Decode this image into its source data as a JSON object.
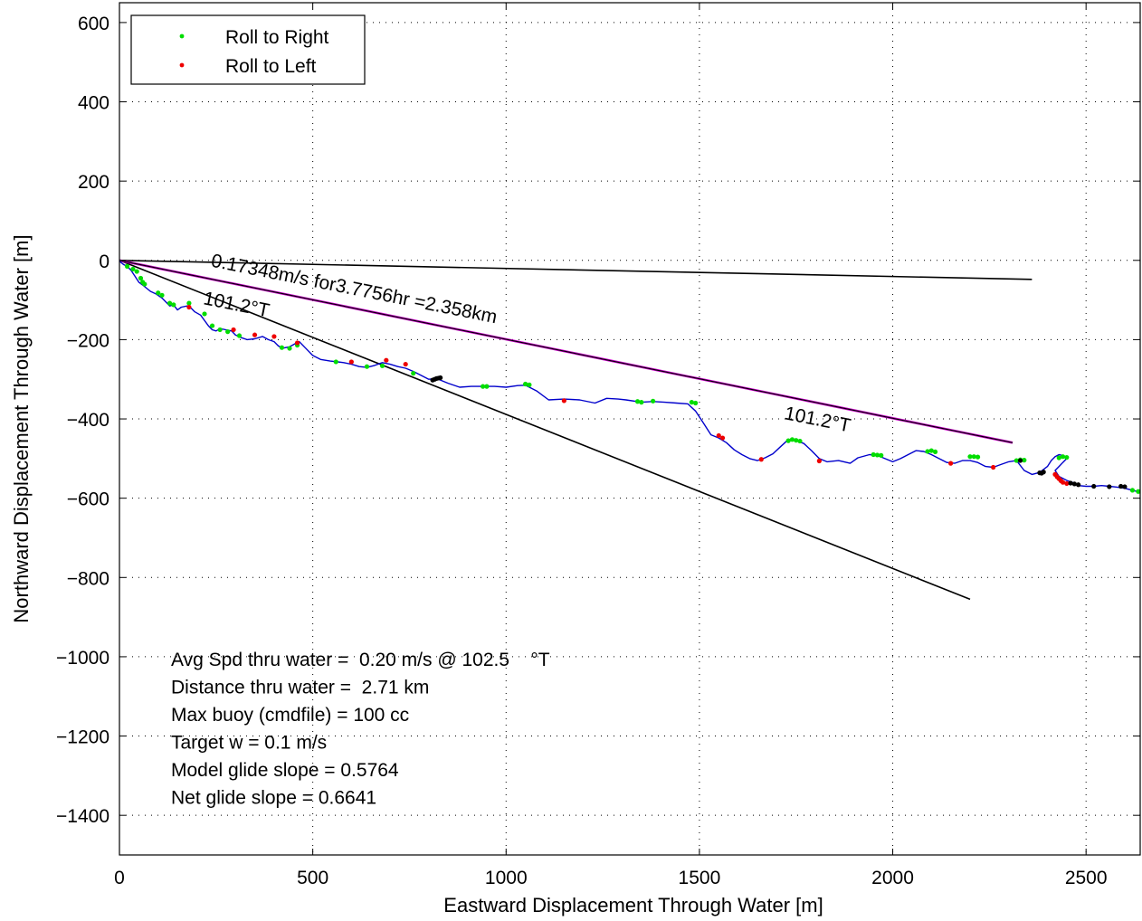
{
  "chart_data": {
    "type": "line",
    "xlabel": "Eastward Displacement Through Water [m]",
    "ylabel": "Northward Displacement Through Water [m]",
    "xlim": [
      0,
      2640
    ],
    "ylim": [
      -1500,
      650
    ],
    "xticks": [
      0,
      500,
      1000,
      1500,
      2000,
      2500
    ],
    "yticks": [
      600,
      400,
      200,
      0,
      -200,
      -400,
      -600,
      -800,
      -1000,
      -1200,
      -1400
    ],
    "xtick_labels": [
      "0",
      "500",
      "1000",
      "1500",
      "2000",
      "2500"
    ],
    "ytick_labels": [
      "600",
      "400",
      "200",
      "0",
      "−200",
      "−400",
      "−600",
      "−800",
      "−1000",
      "−1200",
      "−1400"
    ],
    "grid": true,
    "legend_position": "top-left",
    "legend": [
      {
        "label": "Roll to Right",
        "color": "#00dd00"
      },
      {
        "label": "Roll to Left",
        "color": "#ee0000"
      }
    ],
    "colors": {
      "track": "#0000cc",
      "right": "#00dd00",
      "left": "#ee0000",
      "other": "#000000",
      "mean": "#cc00cc",
      "ref": "#000000"
    },
    "track": {
      "x": [
        0,
        10,
        20,
        30,
        40,
        50,
        60,
        70,
        80,
        95,
        110,
        120,
        130,
        140,
        150,
        160,
        175,
        185,
        195,
        210,
        230,
        240,
        250,
        260,
        275,
        290,
        300,
        315,
        330,
        350,
        370,
        385,
        400,
        410,
        420,
        440,
        455,
        465,
        480,
        500,
        520,
        545,
        565,
        580,
        600,
        620,
        640,
        660,
        680,
        700,
        720,
        740,
        760,
        780,
        800,
        820,
        850,
        880,
        910,
        940,
        970,
        1000,
        1030,
        1050,
        1080,
        1110,
        1150,
        1190,
        1230,
        1260,
        1290,
        1310,
        1350,
        1380,
        1410,
        1440,
        1470,
        1490,
        1510,
        1530,
        1550,
        1570,
        1590,
        1610,
        1630,
        1650,
        1670,
        1690,
        1710,
        1730,
        1750,
        1770,
        1790,
        1810,
        1830,
        1860,
        1890,
        1910,
        1940,
        1960,
        1980,
        2000,
        2020,
        2040,
        2060,
        2080,
        2100,
        2120,
        2140,
        2160,
        2180,
        2200,
        2220,
        2240,
        2260,
        2280,
        2300,
        2320,
        2340,
        2360,
        2380,
        2400,
        2410,
        2420,
        2430,
        2440,
        2450,
        2440,
        2430,
        2420,
        2430,
        2450,
        2470,
        2480,
        2500,
        2520,
        2540,
        2560,
        2580,
        2600,
        2620,
        2640
      ],
      "y": [
        -2,
        -10,
        -15,
        -25,
        -40,
        -55,
        -62,
        -70,
        -78,
        -85,
        -95,
        -105,
        -115,
        -112,
        -125,
        -118,
        -115,
        -120,
        -130,
        -138,
        -165,
        -175,
        -178,
        -172,
        -175,
        -178,
        -188,
        -195,
        -200,
        -198,
        -192,
        -200,
        -205,
        -215,
        -222,
        -218,
        -210,
        -205,
        -220,
        -240,
        -250,
        -254,
        -256,
        -258,
        -262,
        -268,
        -270,
        -265,
        -258,
        -262,
        -268,
        -272,
        -280,
        -290,
        -300,
        -298,
        -310,
        -320,
        -318,
        -318,
        -318,
        -320,
        -316,
        -315,
        -330,
        -352,
        -350,
        -352,
        -360,
        -348,
        -350,
        -352,
        -358,
        -356,
        -358,
        -360,
        -362,
        -380,
        -410,
        -440,
        -448,
        -460,
        -478,
        -490,
        -500,
        -505,
        -498,
        -488,
        -470,
        -452,
        -455,
        -462,
        -480,
        -500,
        -508,
        -505,
        -512,
        -498,
        -490,
        -492,
        -500,
        -508,
        -500,
        -490,
        -480,
        -482,
        -490,
        -500,
        -510,
        -512,
        -505,
        -505,
        -510,
        -520,
        -522,
        -515,
        -508,
        -505,
        -530,
        -540,
        -535,
        -520,
        -505,
        -495,
        -490,
        -492,
        -500,
        -510,
        -520,
        -530,
        -545,
        -555,
        -562,
        -568,
        -570,
        -570,
        -568,
        -570,
        -572,
        -575,
        -580,
        -585
      ]
    },
    "right_points": {
      "x": [
        20,
        35,
        45,
        55,
        60,
        65,
        100,
        110,
        130,
        140,
        180,
        220,
        240,
        260,
        280,
        310,
        420,
        440,
        460,
        560,
        640,
        680,
        760,
        940,
        950,
        1050,
        1060,
        1340,
        1350,
        1380,
        1480,
        1490,
        1730,
        1740,
        1750,
        1760,
        1950,
        1960,
        1970,
        2090,
        2100,
        2110,
        2200,
        2210,
        2220,
        2320,
        2330,
        2340,
        2430,
        2440,
        2450,
        2620,
        2635
      ],
      "y": [
        -15,
        -22,
        -28,
        -45,
        -55,
        -60,
        -82,
        -88,
        -108,
        -112,
        -108,
        -135,
        -165,
        -175,
        -180,
        -190,
        -220,
        -222,
        -214,
        -256,
        -268,
        -266,
        -285,
        -318,
        -318,
        -312,
        -314,
        -356,
        -358,
        -355,
        -358,
        -360,
        -455,
        -452,
        -454,
        -456,
        -490,
        -491,
        -492,
        -482,
        -480,
        -483,
        -495,
        -495,
        -496,
        -505,
        -503,
        -504,
        -498,
        -495,
        -497,
        -580,
        -583
      ]
    },
    "left_points": {
      "x": [
        180,
        295,
        350,
        400,
        460,
        600,
        690,
        740,
        1150,
        1550,
        1560,
        1660,
        1810,
        2150,
        2260,
        2420,
        2425,
        2430,
        2435,
        2440,
        2450
      ],
      "y": [
        -118,
        -175,
        -188,
        -192,
        -208,
        -256,
        -252,
        -262,
        -354,
        -442,
        -448,
        -502,
        -506,
        -512,
        -522,
        -540,
        -546,
        -551,
        -556,
        -560,
        -563
      ]
    },
    "other_points": {
      "x": [
        810,
        815,
        820,
        825,
        830,
        2330,
        2380,
        2385,
        2390,
        2460,
        2470,
        2480,
        2520,
        2560,
        2590,
        2600
      ],
      "y": [
        -302,
        -300,
        -298,
        -297,
        -296,
        -505,
        -536,
        -537,
        -534,
        -562,
        -564,
        -566,
        -570,
        -571,
        -570,
        -571
      ]
    },
    "mean_line": {
      "x": [
        0,
        2310
      ],
      "y": [
        0,
        -460
      ]
    },
    "ref_lines": [
      {
        "x": [
          0,
          2360
        ],
        "y": [
          0,
          -48
        ]
      },
      {
        "x": [
          0,
          2200
        ],
        "y": [
          0,
          -855
        ]
      }
    ],
    "annotations": [
      {
        "text": "0.17348m/s for3.7756hr =2.358km",
        "x": 235,
        "y": -15,
        "rotate": 11.3
      },
      {
        "text": "101.2°T",
        "x": 215,
        "y": -110,
        "rotate": 11.3
      },
      {
        "text": "101.2°T",
        "x": 1718,
        "y": -400,
        "rotate": 11.3
      }
    ],
    "stats": [
      "Avg Spd thru water =  0.20 m/s @ 102.5    °T",
      "Distance thru water =  2.71 km",
      "Max buoy (cmdfile) = 100 cc",
      "Target w = 0.1 m/s",
      "Model glide slope = 0.5764",
      "Net glide slope = 0.6641"
    ]
  }
}
